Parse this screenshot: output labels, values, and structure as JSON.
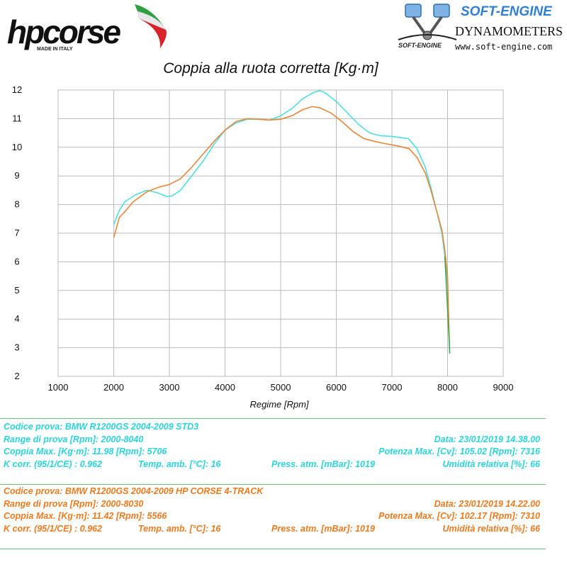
{
  "header": {
    "hp_logo_text": "hpcorse",
    "hp_logo_tagline": "MADE IN ITALY",
    "se_brand": "SOFT-ENGINE",
    "se_subtitle": "DYNAMOMETERS",
    "se_website": "www.soft-engine.com",
    "se_small_logo": "SOFT-ENGINE"
  },
  "chart_data": {
    "type": "line",
    "title": "Coppia alla ruota corretta [Kg·m]",
    "xlabel": "Regime [Rpm]",
    "ylabel": "",
    "xlim": [
      1000,
      9000
    ],
    "ylim": [
      2,
      12
    ],
    "xticks": [
      1000,
      2000,
      3000,
      4000,
      5000,
      6000,
      7000,
      8000,
      9000
    ],
    "yticks": [
      2,
      3,
      4,
      5,
      6,
      7,
      8,
      9,
      10,
      11,
      12
    ],
    "grid": true,
    "series": [
      {
        "name": "BMW R1200GS 2004-2009 STD3",
        "color": "#4de0de",
        "points": [
          [
            2000,
            7.3
          ],
          [
            2100,
            7.8
          ],
          [
            2200,
            8.1
          ],
          [
            2400,
            8.35
          ],
          [
            2600,
            8.5
          ],
          [
            2800,
            8.4
          ],
          [
            2950,
            8.28
          ],
          [
            3050,
            8.3
          ],
          [
            3200,
            8.5
          ],
          [
            3400,
            9.0
          ],
          [
            3600,
            9.5
          ],
          [
            3800,
            10.1
          ],
          [
            4000,
            10.6
          ],
          [
            4200,
            10.85
          ],
          [
            4400,
            10.98
          ],
          [
            4600,
            10.98
          ],
          [
            4800,
            10.95
          ],
          [
            5000,
            11.1
          ],
          [
            5200,
            11.35
          ],
          [
            5400,
            11.7
          ],
          [
            5600,
            11.92
          ],
          [
            5706,
            11.98
          ],
          [
            5800,
            11.9
          ],
          [
            6000,
            11.6
          ],
          [
            6200,
            11.2
          ],
          [
            6400,
            10.8
          ],
          [
            6600,
            10.5
          ],
          [
            6800,
            10.4
          ],
          [
            7000,
            10.38
          ],
          [
            7300,
            10.3
          ],
          [
            7450,
            9.95
          ],
          [
            7600,
            9.3
          ],
          [
            7700,
            8.6
          ],
          [
            7800,
            7.8
          ],
          [
            7900,
            7.0
          ],
          [
            7950,
            6.2
          ],
          [
            8000,
            5.2
          ],
          [
            8040,
            2.8
          ]
        ]
      },
      {
        "name": "BMW R1200GS 2004-2009 HP CORSE 4-TRACK",
        "color": "#e8863a",
        "points": [
          [
            2000,
            6.85
          ],
          [
            2100,
            7.55
          ],
          [
            2200,
            7.75
          ],
          [
            2350,
            8.1
          ],
          [
            2600,
            8.45
          ],
          [
            2800,
            8.6
          ],
          [
            3000,
            8.7
          ],
          [
            3200,
            8.9
          ],
          [
            3400,
            9.3
          ],
          [
            3600,
            9.75
          ],
          [
            3800,
            10.2
          ],
          [
            4000,
            10.6
          ],
          [
            4200,
            10.9
          ],
          [
            4400,
            11.0
          ],
          [
            4600,
            10.98
          ],
          [
            4800,
            10.95
          ],
          [
            5000,
            10.98
          ],
          [
            5200,
            11.1
          ],
          [
            5400,
            11.32
          ],
          [
            5566,
            11.42
          ],
          [
            5700,
            11.38
          ],
          [
            5900,
            11.2
          ],
          [
            6100,
            10.9
          ],
          [
            6300,
            10.55
          ],
          [
            6500,
            10.3
          ],
          [
            6700,
            10.2
          ],
          [
            6900,
            10.12
          ],
          [
            7100,
            10.05
          ],
          [
            7310,
            9.95
          ],
          [
            7450,
            9.65
          ],
          [
            7600,
            9.1
          ],
          [
            7700,
            8.5
          ],
          [
            7800,
            7.8
          ],
          [
            7900,
            7.1
          ],
          [
            7950,
            6.4
          ],
          [
            8000,
            5.5
          ],
          [
            8030,
            3.2
          ]
        ]
      }
    ]
  },
  "tests": [
    {
      "id": "std",
      "color": "#2bd4dc",
      "codice": "Codice prova: BMW R1200GS 2004-2009 STD3",
      "range": "Range di prova [Rpm]: 2000-8040",
      "data": "Data: 23/01/2019  14.38.00",
      "coppia": "Coppia Max. [Kg·m]: 11.98  [Rpm]: 5706",
      "potenza": "Potenza Max. [Cv]: 105.02  [Rpm]: 7316",
      "kcorr": "K corr. (95/1/CE) : 0.962",
      "temp": "Temp. amb. [°C]: 16",
      "press": "Press. atm. [mBar]: 1019",
      "umid": "Umidità relativa [%]: 66"
    },
    {
      "id": "hp",
      "color": "#ee7a20",
      "codice": "Codice prova: BMW R1200GS  2004-2009 HP CORSE 4-TRACK",
      "range": "Range di prova [Rpm]: 2000-8030",
      "data": "Data: 23/01/2019  14.22.00",
      "coppia": "Coppia Max. [Kg·m]: 11.42  [Rpm]: 5566",
      "potenza": "Potenza Max. [Cv]: 102.17  [Rpm]: 7310",
      "kcorr": "K corr. (95/1/CE) : 0.962",
      "temp": "Temp. amb. [°C]: 16",
      "press": "Press. atm. [mBar]: 1019",
      "umid": "Umidità relativa [%]: 66"
    }
  ]
}
